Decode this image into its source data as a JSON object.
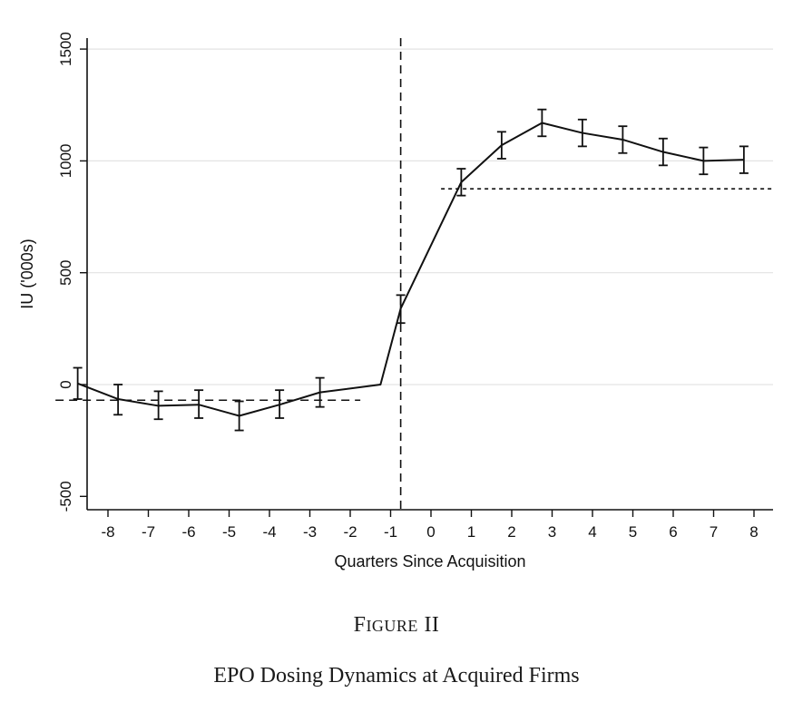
{
  "chart_data": {
    "type": "line",
    "xlabel": "Quarters Since Acquisition",
    "ylabel": "IU ('000s)",
    "x_ticks": [
      -8,
      -7,
      -6,
      -5,
      -4,
      -3,
      -2,
      -1,
      0,
      1,
      2,
      3,
      4,
      5,
      6,
      7,
      8
    ],
    "y_ticks": [
      -500,
      0,
      500,
      1000,
      1500
    ],
    "xlim": [
      -8.5,
      8.5
    ],
    "ylim": [
      -550,
      1560
    ],
    "grid": true,
    "series": [
      {
        "x": [
          -8.75,
          -7.75,
          -6.75,
          -5.75,
          -4.75,
          -3.75,
          -2.75,
          -1.25,
          -0.75,
          0.75,
          1.75,
          2.75,
          3.75,
          4.75,
          5.75,
          6.75,
          7.75
        ],
        "values": [
          5,
          -65,
          -95,
          -90,
          -140,
          -90,
          -35,
          0,
          340,
          905,
          1070,
          1170,
          1125,
          1095,
          1040,
          1000,
          1005
        ],
        "ci_low": [
          -65,
          -135,
          -155,
          -150,
          -205,
          -150,
          -100,
          null,
          275,
          845,
          1010,
          1110,
          1065,
          1035,
          980,
          940,
          945
        ],
        "ci_high": [
          75,
          0,
          -30,
          -25,
          -75,
          -25,
          30,
          null,
          400,
          965,
          1130,
          1230,
          1185,
          1155,
          1100,
          1060,
          1065
        ]
      }
    ],
    "reference_lines": [
      {
        "orientation": "vertical",
        "x": -0.75,
        "style": "dashed"
      },
      {
        "orientation": "horizontal",
        "y": -70,
        "x_from": -9.3,
        "x_to": -1.75,
        "style": "dashed"
      },
      {
        "orientation": "horizontal",
        "y": 875,
        "x_from": 0.25,
        "x_to": 8.5,
        "style": "dotted"
      }
    ]
  },
  "caption": {
    "figure_label_first": "F",
    "figure_label_rest": "IGURE",
    "figure_number": "II",
    "title": "EPO Dosing Dynamics at Acquired Firms"
  }
}
